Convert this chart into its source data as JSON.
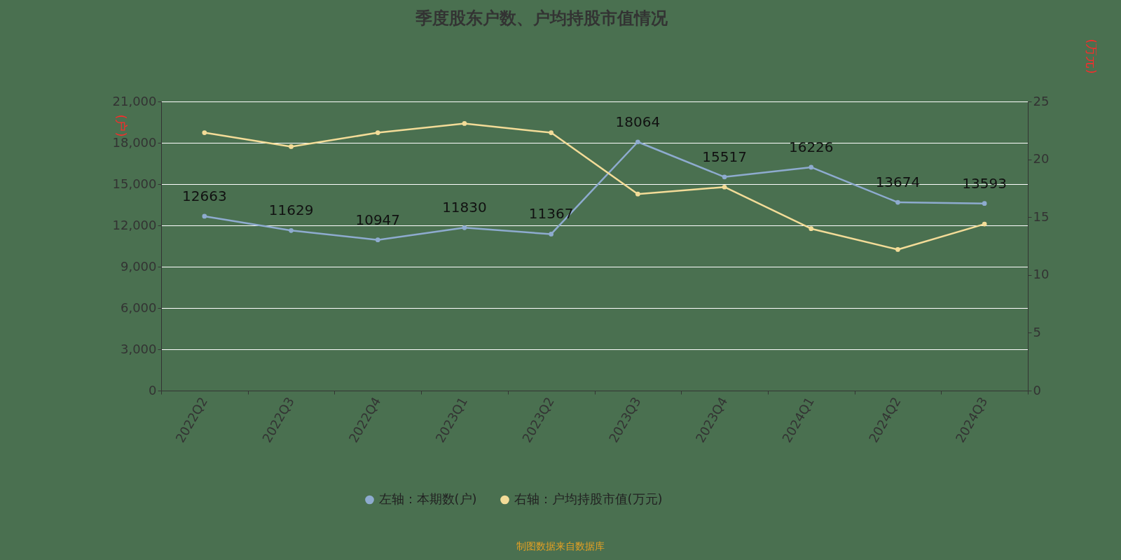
{
  "chart_data": {
    "type": "line",
    "title": "季度股东户数、户均持股市值情况",
    "ylabel": "(户)",
    "y2label": "(万元)",
    "categories": [
      "2022Q2",
      "2022Q3",
      "2022Q4",
      "2023Q1",
      "2023Q2",
      "2023Q3",
      "2023Q4",
      "2024Q1",
      "2024Q2",
      "2024Q3"
    ],
    "series": [
      {
        "name": "左轴：本期数(户)",
        "color": "#8eabcf",
        "values": [
          12663,
          11629,
          10947,
          11830,
          11367,
          18064,
          15517,
          16226,
          13674,
          13593
        ],
        "value_labels": [
          "12663",
          "11629",
          "10947",
          "11830",
          "11367",
          "18064",
          "15517",
          "16226",
          "13674",
          "13593"
        ]
      },
      {
        "name": "右轴：户均持股市值(万元)",
        "color": "#f3dc98",
        "axis": "y2",
        "values": [
          22.3,
          21.1,
          22.3,
          23.1,
          22.3,
          17.0,
          17.6,
          14.0,
          12.2,
          14.4
        ]
      }
    ],
    "ylim": [
      0,
      21000
    ],
    "yticks": [
      {
        "value": 0,
        "label": "0"
      },
      {
        "value": 3000,
        "label": "3,000"
      },
      {
        "value": 6000,
        "label": "6,000"
      },
      {
        "value": 9000,
        "label": "9,000"
      },
      {
        "value": 12000,
        "label": "12,000"
      },
      {
        "value": 15000,
        "label": "15,000"
      },
      {
        "value": 18000,
        "label": "18,000"
      },
      {
        "value": 21000,
        "label": "21,000"
      }
    ],
    "y2lim": [
      0,
      25
    ],
    "y2ticks": [
      0,
      5,
      10,
      15,
      20,
      25
    ],
    "grid": "y",
    "legend": "bottom",
    "marker": "circle",
    "line_style": "solid",
    "annotations": [
      "制图数据来自数据库"
    ]
  }
}
